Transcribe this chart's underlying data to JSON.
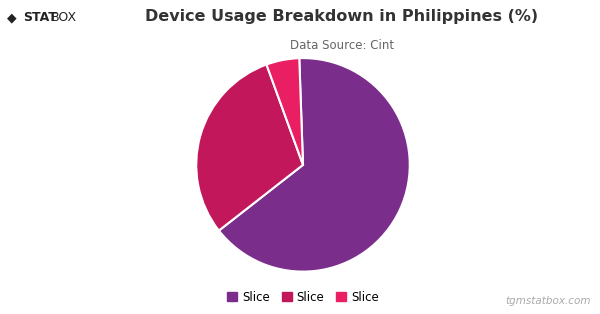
{
  "title": "Device Usage Breakdown in Philippines (%)",
  "subtitle": "Data Source: Cint",
  "slices": [
    65,
    30,
    5
  ],
  "labels": [
    "Slice",
    "Slice",
    "Slice"
  ],
  "colors": [
    "#7B2D8B",
    "#C2185B",
    "#E91E63"
  ],
  "start_angle": 92,
  "background_color": "#ffffff",
  "title_fontsize": 11.5,
  "subtitle_fontsize": 8.5,
  "legend_fontsize": 8.5,
  "footer_text": "tgmstatbox.com",
  "logo_diamond": "◆",
  "logo_stat": "STAT",
  "logo_box": "BOX",
  "edgecolor": "#ffffff",
  "edge_linewidth": 1.5,
  "counterclock": false
}
